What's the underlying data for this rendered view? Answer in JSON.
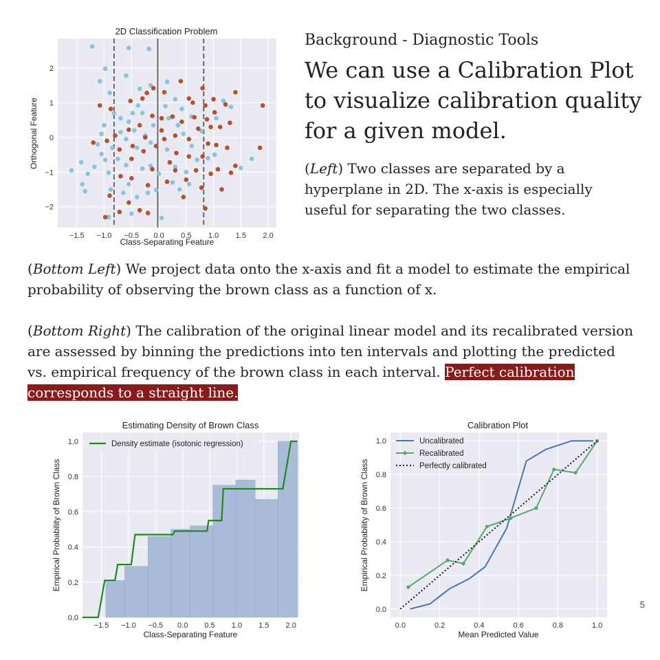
{
  "slide": {
    "subtitle": "Background - Diagnostic Tools",
    "headline": "We can use a Calibration Plot to visualize calibration quality for a given model.",
    "left_para": {
      "tag": "Left",
      "text": " Two classes are separated by a hyperplane in 2D. The x-axis is especially useful for separating the two classes."
    },
    "bottom_left_para": {
      "tag": "Bottom Left",
      "text": " We project data onto the x-axis and fit a model to estimate the empirical probability of observing the brown class as a function of x."
    },
    "bottom_right_para": {
      "tag": "Bottom Right",
      "text": " The calibration of the original linear model and its recalibrated version are assessed by binning the predictions into ten intervals and plotting the predicted vs. empirical frequency of the brown class in each interval. ",
      "highlight": "Perfect calibration corresponds to a straight line."
    },
    "page_number": "5"
  },
  "colors": {
    "blue": "#89c4dc",
    "brown": "#b94f2b",
    "hist": "#a4b6d6",
    "green_step": "#1a8a1a",
    "uncal": "#4c72b0",
    "recal": "#55a868",
    "plot_bg": "#eaeaf2"
  },
  "chart_data": [
    {
      "id": "scatter",
      "type": "scatter",
      "title": "2D Classification Problem",
      "xlabel": "Class-Separating Feature",
      "ylabel": "Orthogonal Feature",
      "xlim": [
        -1.85,
        2.15
      ],
      "ylim": [
        -2.6,
        2.85
      ],
      "xticks": [
        -1.5,
        -1.0,
        -0.5,
        0.0,
        0.5,
        1.0,
        1.5,
        2.0
      ],
      "xtick_labels": [
        "−1.5",
        "−1.0",
        "−0.5",
        "0.0",
        "0.5",
        "1.0",
        "1.5",
        "2.0"
      ],
      "yticks": [
        -2,
        -1,
        0,
        1,
        2
      ],
      "ytick_labels": [
        "−2",
        "−1",
        "0",
        "1",
        "2"
      ],
      "vlines": [
        {
          "x": -0.82,
          "style": "dashed"
        },
        {
          "x": -0.02,
          "style": "solid"
        },
        {
          "x": 0.82,
          "style": "dashed"
        }
      ],
      "series": [
        {
          "class": "blue",
          "points": [
            [
              -1.22,
              2.62
            ],
            [
              -0.98,
              1.98
            ],
            [
              -0.55,
              2.58
            ],
            [
              -0.18,
              2.55
            ],
            [
              -0.6,
              1.78
            ],
            [
              -1.08,
              1.62
            ],
            [
              -0.9,
              1.28
            ],
            [
              -0.35,
              1.4
            ],
            [
              -0.15,
              1.5
            ],
            [
              0.15,
              1.6
            ],
            [
              0.3,
              1.1
            ],
            [
              -1.42,
              -0.72
            ],
            [
              -1.3,
              -1.05
            ],
            [
              -1.4,
              -1.35
            ],
            [
              -1.35,
              -1.55
            ],
            [
              -1.6,
              -0.95
            ],
            [
              -1.12,
              -0.2
            ],
            [
              -1.05,
              -0.48
            ],
            [
              -1.18,
              -0.85
            ],
            [
              -0.98,
              -0.65
            ],
            [
              -0.92,
              -1.02
            ],
            [
              -0.88,
              -1.5
            ],
            [
              -0.6,
              -0.8
            ],
            [
              -0.55,
              -1.35
            ],
            [
              -0.4,
              -1.72
            ],
            [
              -0.3,
              -0.9
            ],
            [
              -0.2,
              -1.6
            ],
            [
              -0.05,
              -1.52
            ],
            [
              0.0,
              -1.05
            ],
            [
              -0.7,
              0.15
            ],
            [
              -0.45,
              0.2
            ],
            [
              -0.15,
              -0.15
            ],
            [
              0.18,
              0.55
            ],
            [
              0.3,
              -0.85
            ],
            [
              0.5,
              -1.0
            ],
            [
              0.55,
              -1.35
            ],
            [
              0.05,
              -2.32
            ],
            [
              -0.55,
              0.45
            ],
            [
              -0.48,
              0.7
            ],
            [
              -0.7,
              0.55
            ],
            [
              -0.4,
              -0.3
            ],
            [
              0.35,
              0.35
            ],
            [
              0.45,
              0.1
            ],
            [
              0.6,
              0.6
            ],
            [
              0.7,
              -0.65
            ],
            [
              0.9,
              -0.6
            ],
            [
              1.02,
              -0.5
            ],
            [
              1.05,
              0.55
            ],
            [
              1.18,
              1.05
            ],
            [
              1.5,
              -0.88
            ],
            [
              1.7,
              -0.62
            ],
            [
              1.32,
              0.88
            ],
            [
              -0.3,
              0.7
            ],
            [
              -0.1,
              0.35
            ],
            [
              0.15,
              -0.35
            ],
            [
              -0.85,
              -0.3
            ],
            [
              -0.75,
              -0.62
            ],
            [
              -1.05,
              0.1
            ],
            [
              -0.6,
              -0.05
            ],
            [
              -0.25,
              0.05
            ],
            [
              -0.82,
              0.7
            ],
            [
              -0.38,
              0.92
            ],
            [
              0.12,
              0.9
            ],
            [
              0.42,
              0.82
            ],
            [
              -0.15,
              -0.82
            ],
            [
              0.25,
              -1.3
            ],
            [
              0.6,
              -0.25
            ],
            [
              0.78,
              0.18
            ],
            [
              -1.0,
              0.35
            ],
            [
              -0.65,
              -1.6
            ],
            [
              0.38,
              -1.5
            ],
            [
              -0.92,
              -2.3
            ],
            [
              -0.5,
              -2.2
            ]
          ]
        },
        {
          "class": "brown",
          "points": [
            [
              -1.08,
              0.92
            ],
            [
              -0.88,
              0.82
            ],
            [
              -0.52,
              1.05
            ],
            [
              -0.22,
              1.28
            ],
            [
              -0.1,
              1.42
            ],
            [
              -0.3,
              1.12
            ],
            [
              0.1,
              1.3
            ],
            [
              0.4,
              1.62
            ],
            [
              0.55,
              1.12
            ],
            [
              0.8,
              1.42
            ],
            [
              1.0,
              1.1
            ],
            [
              0.85,
              0.92
            ],
            [
              1.22,
              0.95
            ],
            [
              1.4,
              1.3
            ],
            [
              1.9,
              0.92
            ],
            [
              -1.2,
              -0.15
            ],
            [
              -0.95,
              -0.1
            ],
            [
              -0.72,
              -0.35
            ],
            [
              -0.5,
              -0.62
            ],
            [
              -0.28,
              -0.4
            ],
            [
              -0.05,
              -0.25
            ],
            [
              0.1,
              -0.05
            ],
            [
              0.3,
              0.05
            ],
            [
              0.55,
              -0.05
            ],
            [
              0.72,
              0.25
            ],
            [
              0.9,
              -0.18
            ],
            [
              1.05,
              -0.22
            ],
            [
              1.25,
              -0.3
            ],
            [
              1.85,
              -0.3
            ],
            [
              1.4,
              -0.82
            ],
            [
              1.08,
              -0.92
            ],
            [
              0.95,
              -1.05
            ],
            [
              0.78,
              -1.45
            ],
            [
              0.5,
              -1.22
            ],
            [
              0.3,
              -0.95
            ],
            [
              0.15,
              -1.28
            ],
            [
              -0.12,
              -0.92
            ],
            [
              -0.2,
              -1.38
            ],
            [
              -0.5,
              -1.18
            ],
            [
              -0.7,
              -1.12
            ],
            [
              -0.9,
              -1.68
            ],
            [
              -0.55,
              -1.88
            ],
            [
              -0.35,
              -2.1
            ],
            [
              -0.2,
              -2.18
            ],
            [
              -0.72,
              -2.15
            ],
            [
              -0.98,
              -2.3
            ],
            [
              0.25,
              0.6
            ],
            [
              0.42,
              0.45
            ],
            [
              0.65,
              0.58
            ],
            [
              0.88,
              0.52
            ],
            [
              1.12,
              0.3
            ],
            [
              1.3,
              0.42
            ],
            [
              0.8,
              -0.55
            ],
            [
              0.55,
              -0.55
            ],
            [
              0.32,
              -0.45
            ],
            [
              0.05,
              0.55
            ],
            [
              -0.12,
              0.62
            ],
            [
              -0.35,
              0.35
            ],
            [
              -0.55,
              0.22
            ],
            [
              -0.8,
              0.05
            ],
            [
              0.95,
              0.3
            ],
            [
              1.02,
              0.72
            ],
            [
              0.62,
              1.0
            ],
            [
              -0.48,
              -0.25
            ],
            [
              0.2,
              -0.72
            ],
            [
              0.68,
              -0.95
            ],
            [
              1.15,
              -1.5
            ],
            [
              1.32,
              -1.02
            ],
            [
              0.45,
              -1.72
            ],
            [
              0.85,
              -2.05
            ],
            [
              0.05,
              0.2
            ],
            [
              -0.25,
              0.0
            ]
          ]
        }
      ]
    },
    {
      "id": "density",
      "type": "bar",
      "title": "Estimating Density of Brown Class",
      "xlabel": "Class-Separating Feature",
      "ylabel": "Empirical Probability of Brown Class",
      "xlim": [
        -1.85,
        2.15
      ],
      "ylim": [
        0,
        1.05
      ],
      "xticks": [
        -1.5,
        -1.0,
        -0.5,
        0.0,
        0.5,
        1.0,
        1.5,
        2.0
      ],
      "xtick_labels": [
        "−1.5",
        "−1.0",
        "−0.5",
        "0.0",
        "0.5",
        "1.0",
        "1.5",
        "2.0"
      ],
      "yticks": [
        0.0,
        0.2,
        0.4,
        0.6,
        0.8,
        1.0
      ],
      "ytick_labels": [
        "0.0",
        "0.2",
        "0.4",
        "0.6",
        "0.8",
        "1.0"
      ],
      "legend": {
        "position": "top-left",
        "label": "Density estimate (isotonic regression)"
      },
      "bars": [
        {
          "x0": -1.42,
          "x1": -1.07,
          "value": 0.21
        },
        {
          "x0": -1.07,
          "x1": -0.64,
          "value": 0.29
        },
        {
          "x0": -0.64,
          "x1": -0.22,
          "value": 0.46
        },
        {
          "x0": -0.22,
          "x1": 0.14,
          "value": 0.5
        },
        {
          "x0": 0.14,
          "x1": 0.56,
          "value": 0.52
        },
        {
          "x0": 0.56,
          "x1": 0.98,
          "value": 0.75
        },
        {
          "x0": 0.98,
          "x1": 1.34,
          "value": 0.78
        },
        {
          "x0": 1.34,
          "x1": 1.76,
          "value": 0.67
        },
        {
          "x0": 1.76,
          "x1": 2.12,
          "value": 1.0
        }
      ],
      "step_line": [
        [
          -1.85,
          0.0
        ],
        [
          -1.56,
          0.0
        ],
        [
          -1.44,
          0.21
        ],
        [
          -1.25,
          0.21
        ],
        [
          -1.2,
          0.3
        ],
        [
          -0.95,
          0.3
        ],
        [
          -0.88,
          0.47
        ],
        [
          -0.18,
          0.47
        ],
        [
          -0.15,
          0.49
        ],
        [
          0.45,
          0.49
        ],
        [
          0.48,
          0.55
        ],
        [
          0.72,
          0.55
        ],
        [
          0.75,
          0.73
        ],
        [
          1.85,
          0.73
        ],
        [
          2.0,
          1.0
        ],
        [
          2.12,
          1.0
        ]
      ]
    },
    {
      "id": "calibration",
      "type": "line",
      "title": "Calibration Plot",
      "xlabel": "Mean Predicted Value",
      "ylabel": "Empirical Probability of Brown Class",
      "xlim": [
        -0.05,
        1.05
      ],
      "ylim": [
        -0.05,
        1.05
      ],
      "xticks": [
        0.0,
        0.2,
        0.4,
        0.6,
        0.8,
        1.0
      ],
      "xtick_labels": [
        "0.0",
        "0.2",
        "0.4",
        "0.6",
        "0.8",
        "1.0"
      ],
      "yticks": [
        0.0,
        0.2,
        0.4,
        0.6,
        0.8,
        1.0
      ],
      "ytick_labels": [
        "0.0",
        "0.2",
        "0.4",
        "0.6",
        "0.8",
        "1.0"
      ],
      "legend": {
        "position": "top-left"
      },
      "series": [
        {
          "name": "Uncalibrated",
          "style": "solid",
          "x": [
            0.05,
            0.15,
            0.25,
            0.35,
            0.43,
            0.54,
            0.64,
            0.74,
            0.87,
            0.98
          ],
          "y": [
            0.0,
            0.03,
            0.12,
            0.18,
            0.25,
            0.48,
            0.88,
            0.95,
            1.0,
            1.0
          ]
        },
        {
          "name": "Recalibrated",
          "style": "solid-markers",
          "x": [
            0.04,
            0.24,
            0.32,
            0.44,
            0.56,
            0.69,
            0.78,
            0.89,
            1.0
          ],
          "y": [
            0.13,
            0.29,
            0.27,
            0.49,
            0.54,
            0.6,
            0.83,
            0.81,
            1.0
          ]
        },
        {
          "name": "Perfectly calibrated",
          "style": "dotted",
          "x": [
            0.0,
            1.0
          ],
          "y": [
            0.0,
            1.0
          ]
        }
      ]
    }
  ]
}
